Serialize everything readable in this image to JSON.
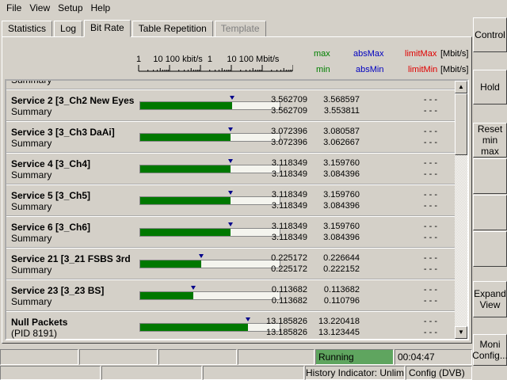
{
  "menu": [
    "File",
    "View",
    "Setup",
    "Help"
  ],
  "tabs": [
    {
      "label": "Statistics"
    },
    {
      "label": "Log"
    },
    {
      "label": "Bit Rate",
      "active": true
    },
    {
      "label": "Table Repetition"
    },
    {
      "label": "Template",
      "disabled": true
    }
  ],
  "header": {
    "scale_top": "1     10 100 kbit/s  1      10 100 Mbit/s",
    "max": "max",
    "min": "min",
    "absMax": "absMax",
    "absMin": "absMin",
    "limitMax": "limitMax",
    "limitMin": "limitMin",
    "unit": "[Mbit/s]",
    "colors": {
      "max": "#008000",
      "abs": "#0000c0",
      "limit": "#e00000"
    }
  },
  "rows": [
    {
      "name": "Service  2 [3_Ch2 New Eyes",
      "sub": "Summary",
      "fill": 0.66,
      "max": "3.562709",
      "min": "3.562709",
      "absMax": "3.568597",
      "absMin": "3.553811",
      "limitMax": "- - -",
      "limitMin": "- - -"
    },
    {
      "name": "Service  3 [3_Ch3 DaAi]",
      "sub": "Summary",
      "fill": 0.65,
      "max": "3.072396",
      "min": "3.072396",
      "absMax": "3.080587",
      "absMin": "3.062667",
      "limitMax": "- - -",
      "limitMin": "- - -"
    },
    {
      "name": "Service  4 [3_Ch4]",
      "sub": "Summary",
      "fill": 0.65,
      "max": "3.118349",
      "min": "3.118349",
      "absMax": "3.159760",
      "absMin": "3.084396",
      "limitMax": "- - -",
      "limitMin": "- - -"
    },
    {
      "name": "Service  5 [3_Ch5]",
      "sub": "Summary",
      "fill": 0.65,
      "max": "3.118349",
      "min": "3.118349",
      "absMax": "3.159760",
      "absMin": "3.084396",
      "limitMax": "- - -",
      "limitMin": "- - -"
    },
    {
      "name": "Service  6 [3_Ch6]",
      "sub": "Summary",
      "fill": 0.65,
      "max": "3.118349",
      "min": "3.118349",
      "absMax": "3.159760",
      "absMin": "3.084396",
      "limitMax": "- - -",
      "limitMin": "- - -"
    },
    {
      "name": "Service  21 [3_21 FSBS 3rd",
      "sub": "Summary",
      "fill": 0.44,
      "max": "0.225172",
      "min": "0.225172",
      "absMax": "0.226644",
      "absMin": "0.222152",
      "limitMax": "- - -",
      "limitMin": "- - -"
    },
    {
      "name": "Service  23 [3_23  BS]",
      "sub": "Summary",
      "fill": 0.38,
      "max": "0.113682",
      "min": "0.113682",
      "absMax": "0.113682",
      "absMin": "0.110796",
      "limitMax": "- - -",
      "limitMin": "- - -"
    },
    {
      "name": "Null Packets",
      "sub": " (PID 8191)",
      "fill": 0.77,
      "max": "13.185826",
      "min": "13.185826",
      "absMax": "13.220418",
      "absMin": "13.123445",
      "limitMax": "- - -",
      "limitMin": "- - -"
    }
  ],
  "partial_row": {
    "sub": "Summary"
  },
  "buttons": {
    "control": "Control",
    "hold": "Hold",
    "reset": "Reset min max",
    "expand": "Expand View",
    "moni": "Moni Config..."
  },
  "status": {
    "state": "Running",
    "state_color": "#5fa55f",
    "time": "00:04:47",
    "history": "History Indicator: Unlimited",
    "config": "Config (DVB)"
  }
}
